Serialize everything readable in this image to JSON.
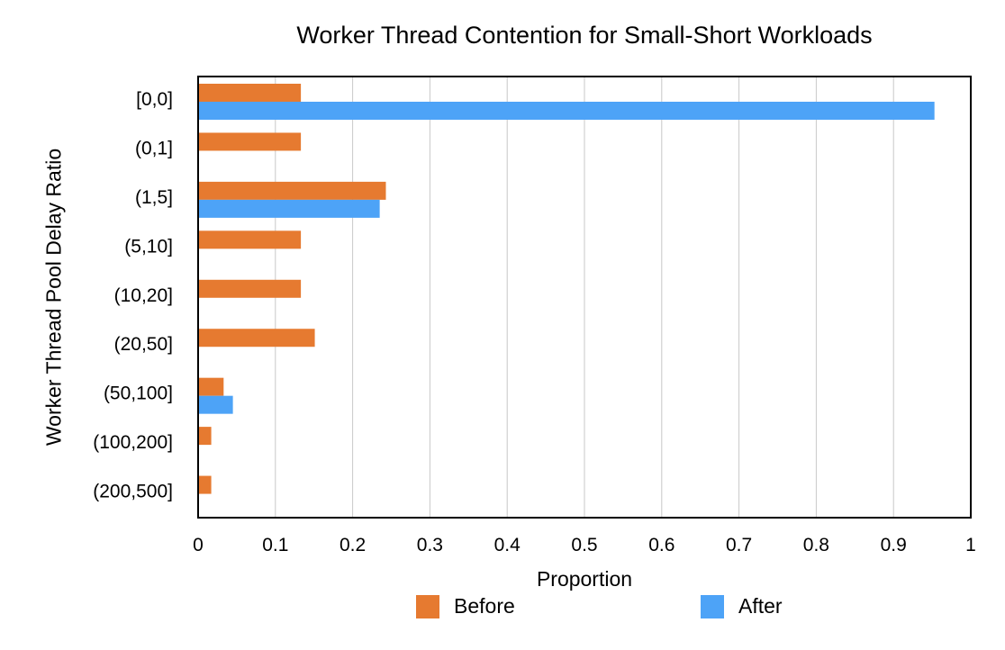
{
  "chart_data": {
    "type": "bar",
    "orientation": "horizontal",
    "title": "Worker Thread Contention for Small-Short Workloads",
    "xlabel": "Proportion",
    "ylabel": "Worker Thread Pool Delay Ratio",
    "categories": [
      "[0,0]",
      "(0,1]",
      "(1,5]",
      "(5,10]",
      "(10,20]",
      "(20,50]",
      "(50,100]",
      "(100,200]",
      "(200,500]"
    ],
    "series": [
      {
        "name": "Before",
        "color": "#E67A30",
        "values": [
          0.133,
          0.133,
          0.243,
          0.133,
          0.133,
          0.151,
          0.033,
          0.017,
          0.017
        ]
      },
      {
        "name": "After",
        "color": "#4DA3F7",
        "values": [
          0.953,
          0,
          0.235,
          0,
          0,
          0,
          0.045,
          0,
          0
        ]
      }
    ],
    "xlim": [
      0,
      1
    ],
    "xticks": [
      "0",
      "0.1",
      "0.2",
      "0.3",
      "0.4",
      "0.5",
      "0.6",
      "0.7",
      "0.8",
      "0.9",
      "1"
    ],
    "grid": "vertical",
    "legend_position": "bottom"
  }
}
